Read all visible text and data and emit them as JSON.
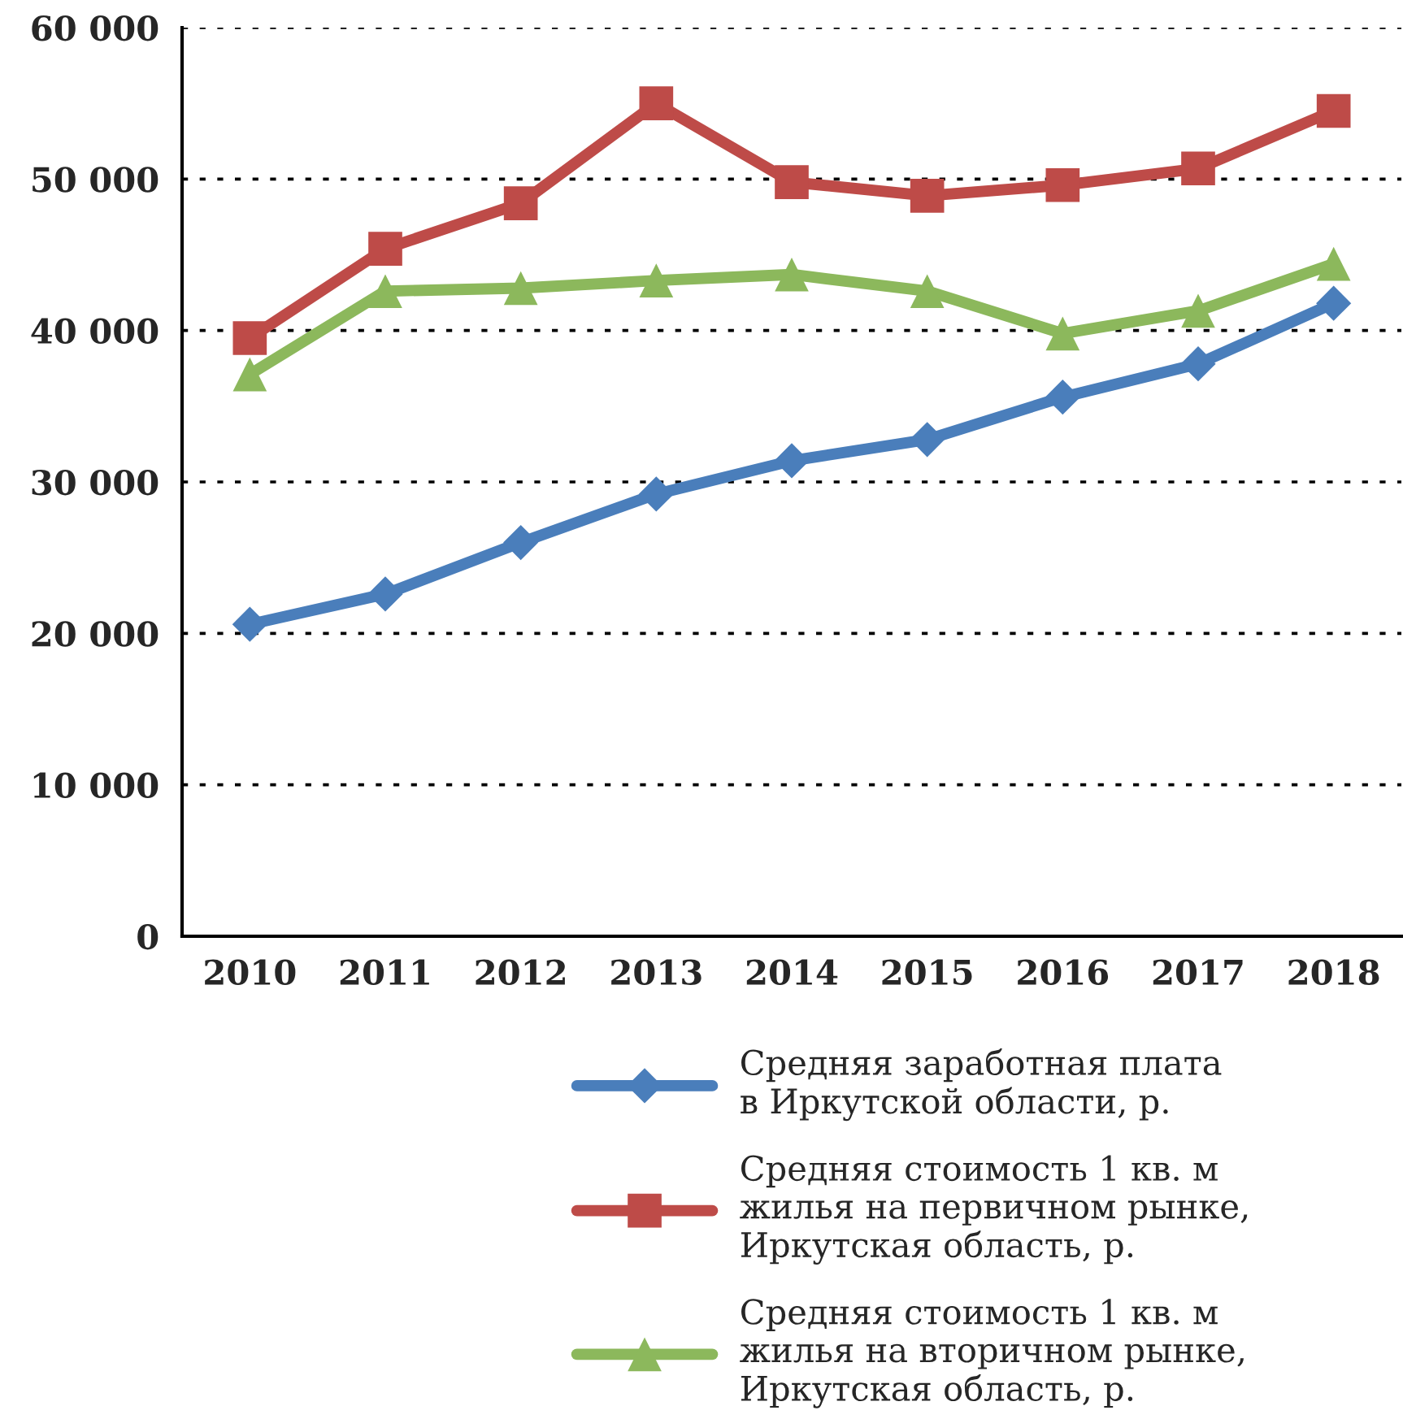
{
  "chart_data": {
    "type": "line",
    "categories": [
      "2010",
      "2011",
      "2012",
      "2013",
      "2014",
      "2015",
      "2016",
      "2017",
      "2018"
    ],
    "series": [
      {
        "name": "Средняя заработная плата\nв Иркутской области, р.",
        "color": "#4a7ebb",
        "marker": "diamond",
        "values": [
          20600,
          22600,
          26000,
          29200,
          31400,
          32800,
          35600,
          37800,
          41800
        ]
      },
      {
        "name": "Средняя стоимость 1 кв. м\nжилья на первичном рынке,\nИркутская область, р.",
        "color": "#be4b48",
        "marker": "square",
        "values": [
          39500,
          45400,
          48400,
          55000,
          49800,
          48900,
          49600,
          50700,
          54500
        ]
      },
      {
        "name": "Средняя стоимость 1 кв. м\nжилья на вторичном рынке,\nИркутская область, р.",
        "color": "#8cb85c",
        "marker": "triangle",
        "values": [
          37100,
          42600,
          42800,
          43300,
          43700,
          42600,
          39800,
          41300,
          44400
        ]
      }
    ],
    "ylim": [
      0,
      60000
    ],
    "yticks": [
      0,
      {
        "value": 10000,
        "label": "10 000"
      },
      {
        "value": 20000,
        "label": "20 000"
      },
      {
        "value": 30000,
        "label": "30 000"
      },
      {
        "value": 40000,
        "label": "40 000"
      },
      {
        "value": 50000,
        "label": "50 000"
      },
      {
        "value": 60000,
        "label": "60 000"
      }
    ],
    "grid": "y",
    "legend": "bottom",
    "line_style": "solid"
  }
}
